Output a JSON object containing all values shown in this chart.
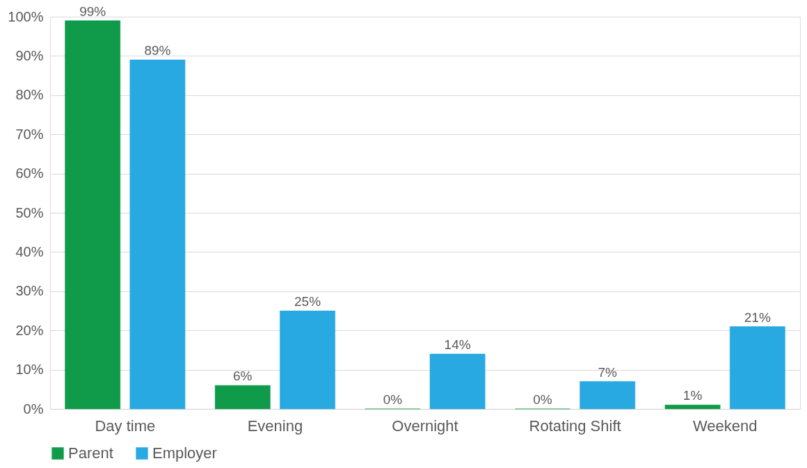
{
  "chart_data": {
    "type": "bar",
    "categories": [
      "Day time",
      "Evening",
      "Overnight",
      "Rotating Shift",
      "Weekend"
    ],
    "series": [
      {
        "name": "Parent",
        "color": "#0f9b4a",
        "values": [
          99,
          6,
          0,
          0,
          1
        ],
        "value_labels": [
          "99%",
          "6%",
          "0%",
          "0%",
          "1%"
        ]
      },
      {
        "name": "Employer",
        "color": "#29a9e1",
        "values": [
          89,
          25,
          14,
          7,
          21
        ],
        "value_labels": [
          "89%",
          "25%",
          "14%",
          "7%",
          "21%"
        ]
      }
    ],
    "ylim": [
      0,
      100
    ],
    "yticks": [
      {
        "value": 0,
        "label": "0%"
      },
      {
        "value": 10,
        "label": "10%"
      },
      {
        "value": 20,
        "label": "20%"
      },
      {
        "value": 30,
        "label": "30%"
      },
      {
        "value": 40,
        "label": "40%"
      },
      {
        "value": 50,
        "label": "50%"
      },
      {
        "value": 60,
        "label": "60%"
      },
      {
        "value": 70,
        "label": "70%"
      },
      {
        "value": 80,
        "label": "80%"
      },
      {
        "value": 90,
        "label": "90%"
      },
      {
        "value": 100,
        "label": "100%"
      }
    ],
    "grid": "y",
    "legend": "bottom"
  }
}
